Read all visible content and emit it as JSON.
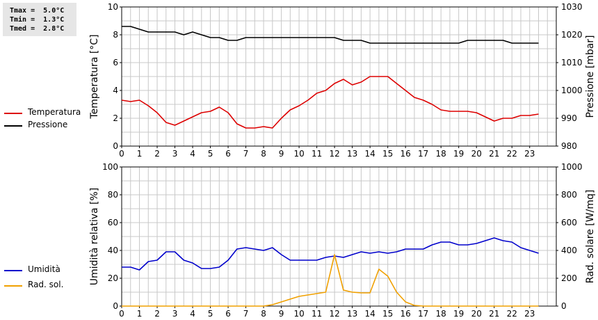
{
  "stats": {
    "tmax": "Tmax =  5.0°C",
    "tmin": "Tmin =  1.3°C",
    "tmed": "Tmed =  2.8°C"
  },
  "colors": {
    "temperature": "#dd0000",
    "pressure": "#000000",
    "humidity": "#0000cc",
    "radiation": "#f0a000",
    "grid": "#c8c8c8"
  },
  "legend_top": [
    {
      "label": "Temperatura",
      "color": "#dd0000"
    },
    {
      "label": "Pressione",
      "color": "#000000"
    }
  ],
  "legend_bottom": [
    {
      "label": "Umidità",
      "color": "#0000cc"
    },
    {
      "label": "Rad. sol.",
      "color": "#f0a000"
    }
  ],
  "chart_data": [
    {
      "type": "line",
      "xlabel": "",
      "xlim": [
        0,
        24.5
      ],
      "xticks": [
        0,
        1,
        2,
        3,
        4,
        5,
        6,
        7,
        8,
        9,
        10,
        11,
        12,
        13,
        14,
        15,
        16,
        17,
        18,
        19,
        20,
        21,
        22,
        23
      ],
      "ylabel": "Temperatura [°C]",
      "ylim": [
        0,
        10
      ],
      "yticks": [
        0,
        2,
        4,
        6,
        8,
        10
      ],
      "y2label": "Pressione [mbar]",
      "y2lim": [
        980,
        1030
      ],
      "y2ticks": [
        980,
        990,
        1000,
        1010,
        1020,
        1030
      ],
      "grid": true,
      "series": [
        {
          "name": "Temperatura",
          "axis": "left",
          "x": [
            0,
            0.5,
            1,
            1.5,
            2,
            2.5,
            3,
            3.5,
            4,
            4.5,
            5,
            5.5,
            6,
            6.5,
            7,
            7.5,
            8,
            8.5,
            9,
            9.5,
            10,
            10.5,
            11,
            11.5,
            12,
            12.5,
            13,
            13.5,
            14,
            14.5,
            15,
            15.5,
            16,
            16.5,
            17,
            17.5,
            18,
            18.5,
            19,
            19.5,
            20,
            20.5,
            21,
            21.5,
            22,
            22.5,
            23,
            23.5
          ],
          "y": [
            3.3,
            3.2,
            3.3,
            2.9,
            2.4,
            1.7,
            1.5,
            1.8,
            2.1,
            2.4,
            2.5,
            2.8,
            2.4,
            1.6,
            1.3,
            1.3,
            1.4,
            1.3,
            2.0,
            2.6,
            2.9,
            3.3,
            3.8,
            4.0,
            4.5,
            4.8,
            4.4,
            4.6,
            5.0,
            5.0,
            5.0,
            4.5,
            4.0,
            3.5,
            3.3,
            3.0,
            2.6,
            2.5,
            2.5,
            2.5,
            2.4,
            2.1,
            1.8,
            2.0,
            2.0,
            2.2,
            2.2,
            2.3
          ]
        },
        {
          "name": "Pressione",
          "axis": "right",
          "x": [
            0,
            0.5,
            1,
            1.5,
            2,
            2.5,
            3,
            3.5,
            4,
            4.5,
            5,
            5.5,
            6,
            6.5,
            7,
            7.5,
            8,
            8.5,
            9,
            9.5,
            10,
            10.5,
            11,
            11.5,
            12,
            12.5,
            13,
            13.5,
            14,
            14.5,
            15,
            15.5,
            16,
            16.5,
            17,
            17.5,
            18,
            18.5,
            19,
            19.5,
            20,
            20.5,
            21,
            21.5,
            22,
            22.5,
            23,
            23.5
          ],
          "y": [
            1023,
            1023,
            1022,
            1021,
            1021,
            1021,
            1021,
            1020,
            1021,
            1020,
            1019,
            1019,
            1018,
            1018,
            1019,
            1019,
            1019,
            1019,
            1019,
            1019,
            1019,
            1019,
            1019,
            1019,
            1019,
            1018,
            1018,
            1018,
            1017,
            1017,
            1017,
            1017,
            1017,
            1017,
            1017,
            1017,
            1017,
            1017,
            1017,
            1018,
            1018,
            1018,
            1018,
            1018,
            1017,
            1017,
            1017,
            1017
          ]
        }
      ]
    },
    {
      "type": "line",
      "xlabel": "",
      "xlim": [
        0,
        24.5
      ],
      "xticks": [
        0,
        1,
        2,
        3,
        4,
        5,
        6,
        7,
        8,
        9,
        10,
        11,
        12,
        13,
        14,
        15,
        16,
        17,
        18,
        19,
        20,
        21,
        22,
        23
      ],
      "ylabel": "Umidità relativa [%]",
      "ylim": [
        0,
        100
      ],
      "yticks": [
        0,
        20,
        40,
        60,
        80,
        100
      ],
      "y2label": "Rad. solare [W/mq]",
      "y2lim": [
        0,
        1000
      ],
      "y2ticks": [
        0,
        200,
        400,
        600,
        800,
        1000
      ],
      "grid": true,
      "series": [
        {
          "name": "Umidità",
          "axis": "left",
          "x": [
            0,
            0.5,
            1,
            1.5,
            2,
            2.5,
            3,
            3.5,
            4,
            4.5,
            5,
            5.5,
            6,
            6.5,
            7,
            7.5,
            8,
            8.5,
            9,
            9.5,
            10,
            10.5,
            11,
            11.5,
            12,
            12.5,
            13,
            13.5,
            14,
            14.5,
            15,
            15.5,
            16,
            16.5,
            17,
            17.5,
            18,
            18.5,
            19,
            19.5,
            20,
            20.5,
            21,
            21.5,
            22,
            22.5,
            23,
            23.5
          ],
          "y": [
            28,
            28,
            26,
            32,
            33,
            39,
            39,
            33,
            31,
            27,
            27,
            28,
            33,
            41,
            42,
            41,
            40,
            42,
            37,
            33,
            33,
            33,
            33,
            35,
            36,
            35,
            37,
            39,
            38,
            39,
            38,
            39,
            41,
            41,
            41,
            44,
            46,
            46,
            44,
            44,
            45,
            47,
            49,
            47,
            46,
            42,
            40,
            38
          ]
        },
        {
          "name": "Rad. sol.",
          "axis": "right",
          "x": [
            0,
            0.5,
            1,
            1.5,
            2,
            2.5,
            3,
            3.5,
            4,
            4.5,
            5,
            5.5,
            6,
            6.5,
            7,
            7.5,
            8,
            8.5,
            9,
            9.5,
            10,
            10.5,
            11,
            11.5,
            12,
            12.5,
            13,
            13.5,
            14,
            14.5,
            15,
            15.5,
            16,
            16.5,
            17,
            17.5,
            18,
            18.5,
            19,
            19.5,
            20,
            20.5,
            21,
            21.5,
            22,
            22.5,
            23,
            23.5
          ],
          "y": [
            0,
            0,
            0,
            0,
            0,
            0,
            0,
            0,
            0,
            0,
            0,
            0,
            0,
            0,
            0,
            0,
            0,
            10,
            30,
            50,
            70,
            80,
            90,
            100,
            370,
            115,
            100,
            95,
            95,
            265,
            215,
            100,
            30,
            5,
            0,
            0,
            0,
            0,
            0,
            0,
            0,
            0,
            0,
            0,
            0,
            0,
            0,
            0
          ]
        }
      ]
    }
  ]
}
